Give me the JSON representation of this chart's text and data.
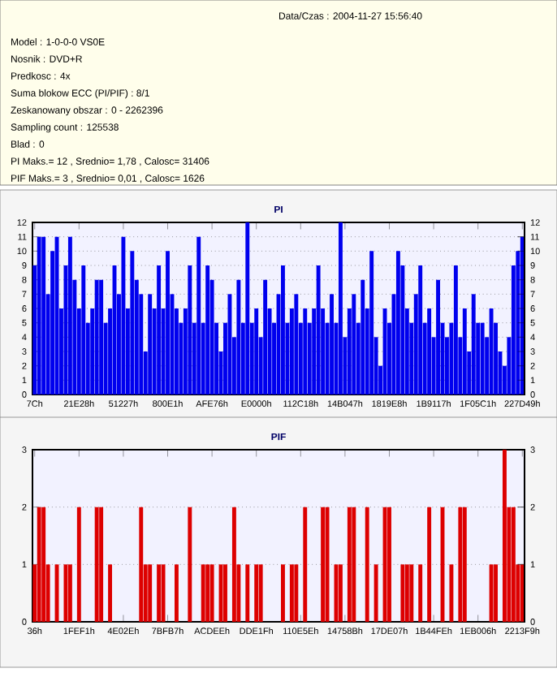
{
  "chart_data": [
    {
      "type": "other",
      "title": "Data/Czas : 2004-11-27 15:56:40",
      "annotations": [
        "Model : 1-0-0-0 VS0E",
        "Nosnik : DVD+R",
        "Predkosc : 4x",
        "Suma blokow ECC (PI/PIF) : 8/1",
        "Zeskanowany obszar : 0 - 2262396",
        "Sampling count : 125538",
        "Blad : 0",
        "PI Maks.= 12 , Srednio= 1,78 , Calosc= 31406",
        "PIF Maks.= 3 , Srednio= 0,01 , Calosc= 1626"
      ]
    },
    {
      "type": "bar",
      "title": "PI",
      "color": "#0000ee",
      "grid": "y",
      "categories": [
        "7Ch",
        null,
        null,
        null,
        null,
        null,
        null,
        null,
        null,
        null,
        "21E28h",
        null,
        null,
        null,
        null,
        null,
        null,
        null,
        null,
        null,
        "51227h",
        null,
        null,
        null,
        null,
        null,
        null,
        null,
        null,
        null,
        "800E1h",
        null,
        null,
        null,
        null,
        null,
        null,
        null,
        null,
        null,
        "AFE76h",
        null,
        null,
        null,
        null,
        null,
        null,
        null,
        null,
        null,
        "E0000h",
        null,
        null,
        null,
        null,
        null,
        null,
        null,
        null,
        null,
        "112C18h",
        null,
        null,
        null,
        null,
        null,
        null,
        null,
        null,
        null,
        "14B047h",
        null,
        null,
        null,
        null,
        null,
        null,
        null,
        null,
        null,
        "1819E8h",
        null,
        null,
        null,
        null,
        null,
        null,
        null,
        null,
        null,
        "1B9117h",
        null,
        null,
        null,
        null,
        null,
        null,
        null,
        null,
        null,
        "1F05C1h",
        null,
        null,
        null,
        null,
        null,
        null,
        null,
        null,
        null,
        "227D49h"
      ],
      "values": [
        9,
        11,
        11,
        7,
        10,
        11,
        6,
        9,
        11,
        8,
        6,
        9,
        5,
        6,
        8,
        8,
        5,
        6,
        9,
        7,
        11,
        6,
        10,
        8,
        7,
        3,
        7,
        6,
        9,
        6,
        10,
        7,
        6,
        5,
        6,
        9,
        5,
        11,
        5,
        9,
        8,
        5,
        3,
        5,
        7,
        4,
        8,
        5,
        12,
        5,
        6,
        4,
        8,
        6,
        5,
        7,
        9,
        5,
        6,
        7,
        5,
        6,
        5,
        6,
        9,
        6,
        5,
        7,
        5,
        12,
        4,
        6,
        7,
        5,
        8,
        6,
        10,
        4,
        2,
        6,
        5,
        7,
        10,
        9,
        6,
        5,
        7,
        9,
        5,
        6,
        4,
        8,
        5,
        4,
        5,
        9,
        4,
        6,
        3,
        7,
        5,
        5,
        4,
        6,
        5,
        3,
        2,
        4,
        9,
        10,
        11
      ],
      "ylim": [
        0,
        12
      ],
      "yticks": [
        0,
        1,
        2,
        3,
        4,
        5,
        6,
        7,
        8,
        9,
        10,
        11,
        12
      ],
      "y2lim": [
        0,
        12
      ],
      "y2ticks": [
        0,
        1,
        2,
        3,
        4,
        5,
        6,
        7,
        8,
        9,
        10,
        11,
        12
      ]
    },
    {
      "type": "bar",
      "title": "PIF",
      "color": "#dd0000",
      "grid": "y",
      "categories": [
        "36h",
        null,
        null,
        null,
        null,
        null,
        null,
        null,
        null,
        null,
        "1FEF1h",
        null,
        null,
        null,
        null,
        null,
        null,
        null,
        null,
        null,
        "4E02Eh",
        null,
        null,
        null,
        null,
        null,
        null,
        null,
        null,
        null,
        "7BFB7h",
        null,
        null,
        null,
        null,
        null,
        null,
        null,
        null,
        null,
        "ACDEEh",
        null,
        null,
        null,
        null,
        null,
        null,
        null,
        null,
        null,
        "DDE1Fh",
        null,
        null,
        null,
        null,
        null,
        null,
        null,
        null,
        null,
        "110E5Eh",
        null,
        null,
        null,
        null,
        null,
        null,
        null,
        null,
        null,
        "14758Bh",
        null,
        null,
        null,
        null,
        null,
        null,
        null,
        null,
        null,
        "17DE07h",
        null,
        null,
        null,
        null,
        null,
        null,
        null,
        null,
        null,
        "1B44FEh",
        null,
        null,
        null,
        null,
        null,
        null,
        null,
        null,
        null,
        "1EB006h",
        null,
        null,
        null,
        null,
        null,
        null,
        null,
        null,
        null,
        "2213F9h"
      ],
      "values": [
        1,
        2,
        2,
        1,
        0,
        1,
        0,
        1,
        1,
        0,
        2,
        0,
        0,
        0,
        2,
        2,
        0,
        1,
        0,
        0,
        0,
        0,
        0,
        0,
        2,
        1,
        1,
        0,
        1,
        1,
        0,
        0,
        1,
        0,
        0,
        2,
        0,
        0,
        1,
        1,
        1,
        0,
        1,
        1,
        0,
        2,
        1,
        0,
        1,
        0,
        1,
        1,
        0,
        0,
        0,
        0,
        1,
        0,
        1,
        1,
        0,
        2,
        0,
        0,
        0,
        2,
        2,
        0,
        1,
        1,
        0,
        2,
        2,
        0,
        0,
        2,
        0,
        1,
        0,
        2,
        2,
        0,
        0,
        1,
        1,
        1,
        0,
        1,
        0,
        2,
        0,
        0,
        2,
        0,
        1,
        0,
        2,
        2,
        0,
        0,
        0,
        0,
        0,
        1,
        1,
        0,
        3,
        2,
        2,
        1,
        1
      ],
      "ylim": [
        0,
        3
      ],
      "yticks": [
        0,
        1,
        2,
        3
      ],
      "y2lim": [
        0,
        3
      ],
      "y2ticks": [
        0,
        1,
        2,
        3
      ]
    }
  ]
}
